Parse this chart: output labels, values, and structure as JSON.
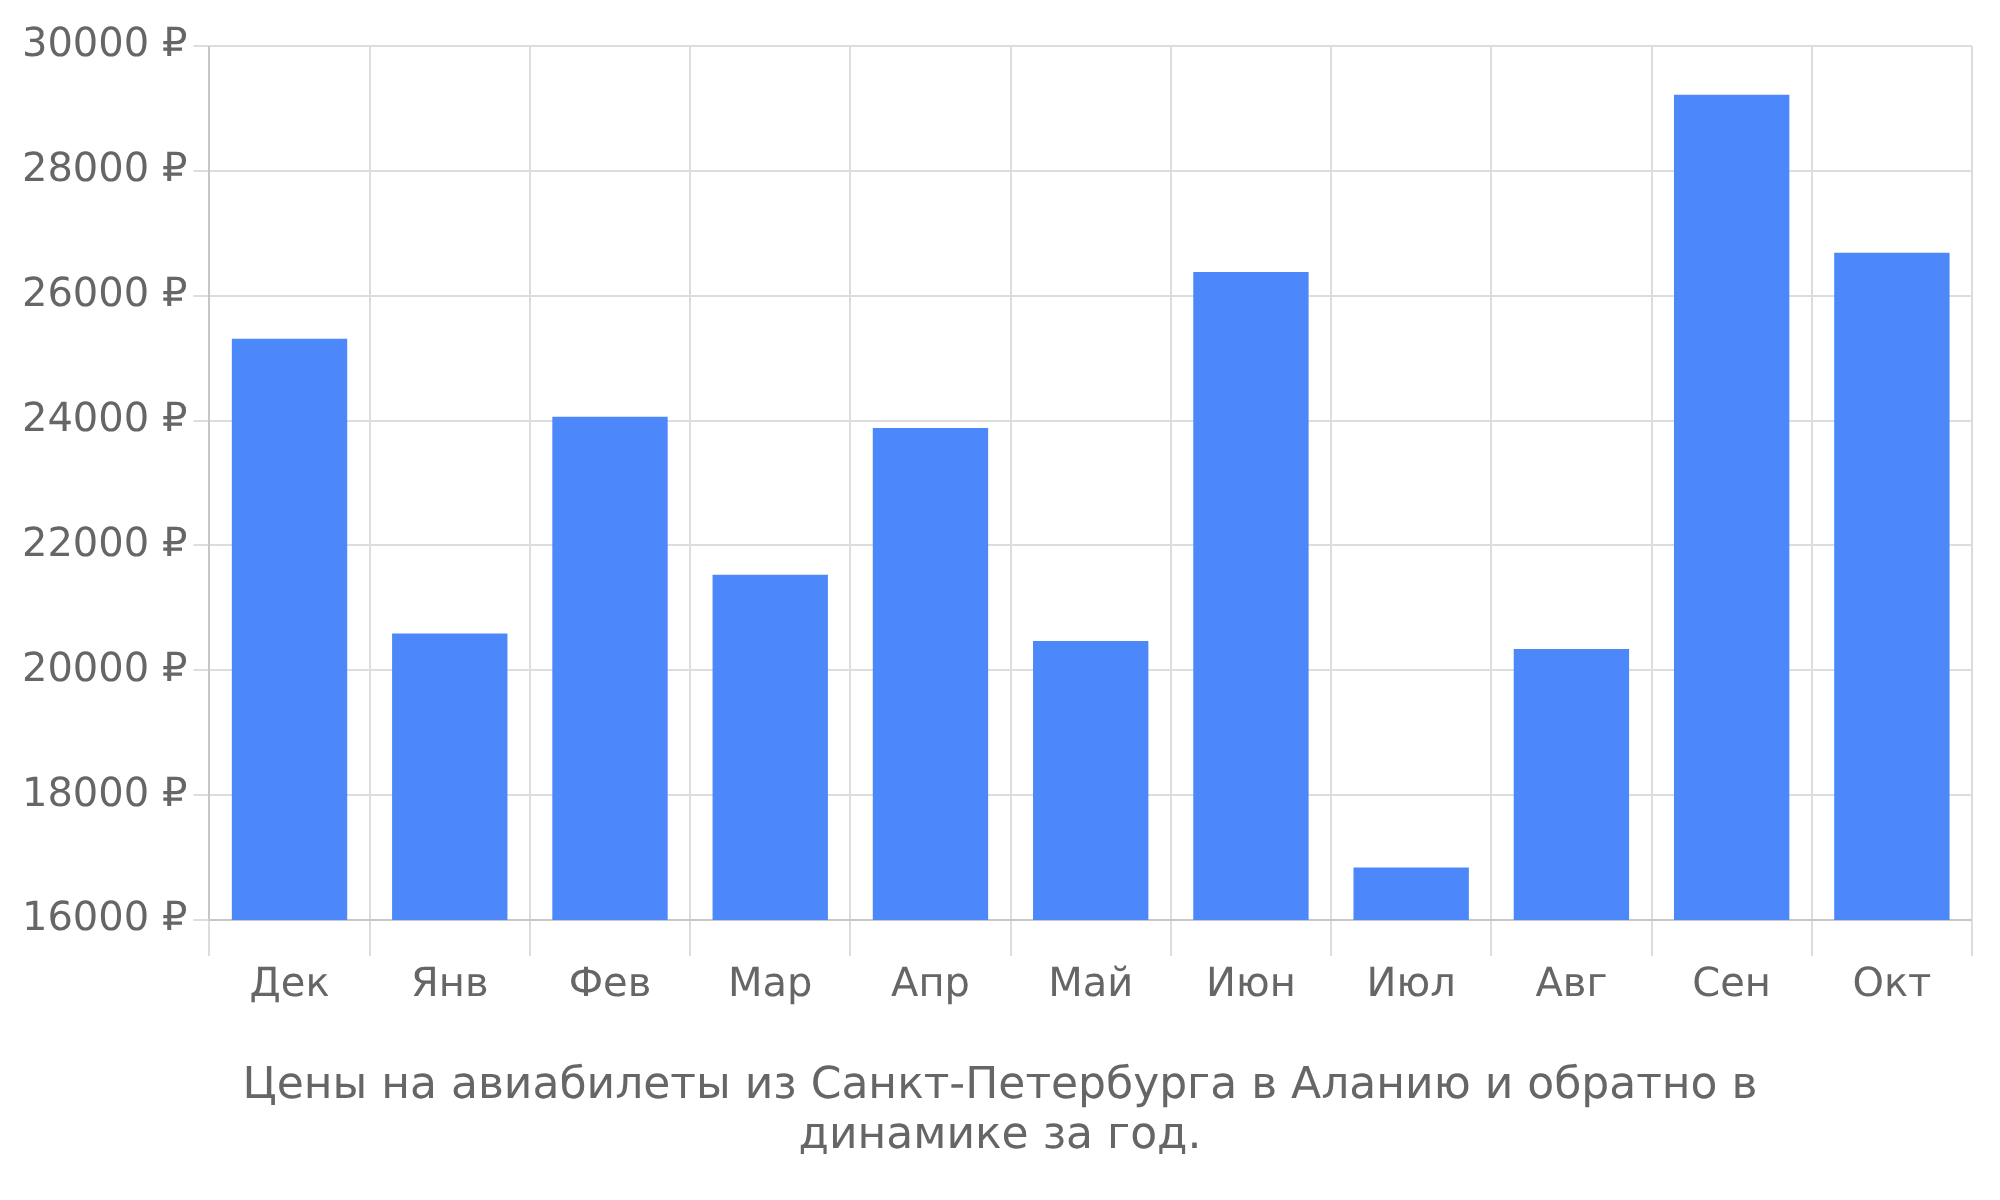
{
  "chart_data": {
    "type": "bar",
    "categories": [
      "Дек",
      "Янв",
      "Фев",
      "Мар",
      "Апр",
      "Май",
      "Июн",
      "Июл",
      "Авг",
      "Сен",
      "Окт"
    ],
    "values": [
      25310,
      20590,
      24060,
      21530,
      23880,
      20470,
      26380,
      16840,
      20340,
      29220,
      26690
    ],
    "color": "#4d88fa",
    "ylim": [
      16000,
      30000
    ],
    "yticks": [
      {
        "value": 16000,
        "label": "16000 ₽"
      },
      {
        "value": 18000,
        "label": "18000 ₽"
      },
      {
        "value": 20000,
        "label": "20000 ₽"
      },
      {
        "value": 22000,
        "label": "22000 ₽"
      },
      {
        "value": 24000,
        "label": "24000 ₽"
      },
      {
        "value": 26000,
        "label": "26000 ₽"
      },
      {
        "value": 28000,
        "label": "28000 ₽"
      },
      {
        "value": 30000,
        "label": "30000 ₽"
      }
    ],
    "grid": true,
    "legend": false,
    "annotations": [
      "Цены на авиабилеты из Санкт-Петербурга в Аланию и обратно в динамике за год."
    ]
  }
}
